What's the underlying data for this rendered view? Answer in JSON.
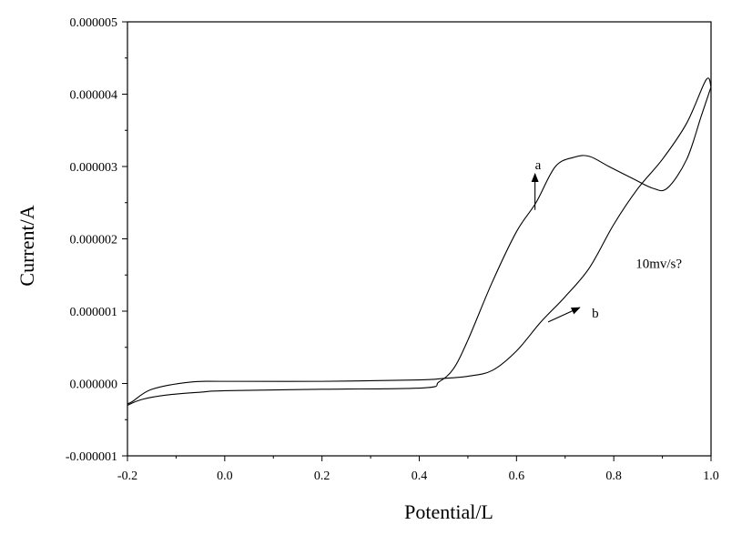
{
  "chart_data": {
    "type": "line",
    "title": "",
    "xlabel": "Potential/L",
    "ylabel": "Current/A",
    "xlim": [
      -0.2,
      1.0
    ],
    "ylim": [
      -1e-06,
      5e-06
    ],
    "grid": false,
    "x_ticks": [
      -0.2,
      0.0,
      0.2,
      0.4,
      0.6,
      0.8,
      1.0
    ],
    "x_tick_labels": [
      "-0.2",
      "0.0",
      "0.2",
      "0.4",
      "0.6",
      "0.8",
      "1.0"
    ],
    "y_ticks": [
      -1e-06,
      0.0,
      1e-06,
      2e-06,
      3e-06,
      4e-06,
      5e-06
    ],
    "y_tick_labels": [
      "-0.000001",
      "0.000000",
      "0.000001",
      "0.000002",
      "0.000003",
      "0.000004",
      "0.000005"
    ],
    "series": [
      {
        "label_key": "a",
        "points": [
          [
            -0.2,
            -3e-07
          ],
          [
            -0.17,
            -2.2e-07
          ],
          [
            -0.12,
            -1.6e-07
          ],
          [
            -0.05,
            -1.2e-07
          ],
          [
            0.0,
            -1e-07
          ],
          [
            0.2,
            -8e-08
          ],
          [
            0.41,
            -6e-08
          ],
          [
            0.44,
            2e-08
          ],
          [
            0.47,
            2e-07
          ],
          [
            0.5,
            6e-07
          ],
          [
            0.55,
            1.4e-06
          ],
          [
            0.6,
            2.1e-06
          ],
          [
            0.64,
            2.5e-06
          ],
          [
            0.68,
            3e-06
          ],
          [
            0.72,
            3.13e-06
          ],
          [
            0.75,
            3.14e-06
          ],
          [
            0.79,
            3e-06
          ],
          [
            0.84,
            2.83e-06
          ],
          [
            0.88,
            2.7e-06
          ],
          [
            0.91,
            2.7e-06
          ],
          [
            0.95,
            3.1e-06
          ],
          [
            0.98,
            3.7e-06
          ],
          [
            1.0,
            4.1e-06
          ]
        ]
      },
      {
        "label_key": "b",
        "points": [
          [
            1.0,
            4.1e-06
          ],
          [
            0.99,
            4.2e-06
          ],
          [
            0.95,
            3.6e-06
          ],
          [
            0.9,
            3.1e-06
          ],
          [
            0.85,
            2.7e-06
          ],
          [
            0.8,
            2.2e-06
          ],
          [
            0.75,
            1.6e-06
          ],
          [
            0.7,
            1.2e-06
          ],
          [
            0.65,
            8.5e-07
          ],
          [
            0.6,
            4.5e-07
          ],
          [
            0.55,
            1.8e-07
          ],
          [
            0.5,
            1e-07
          ],
          [
            0.45,
            7e-08
          ],
          [
            0.4,
            5e-08
          ],
          [
            0.2,
            3e-08
          ],
          [
            0.0,
            3e-08
          ],
          [
            -0.07,
            2e-08
          ],
          [
            -0.15,
            -8e-08
          ],
          [
            -0.19,
            -2.5e-07
          ],
          [
            -0.2,
            -2.8e-07
          ]
        ]
      }
    ],
    "annotations": [
      {
        "text": "a",
        "x": 0.638,
        "y": 2.96e-06,
        "arrow_from": [
          0.638,
          2.4e-06
        ],
        "arrow_to": [
          0.638,
          2.9e-06
        ]
      },
      {
        "text": "b",
        "x": 0.755,
        "y": 9.1e-07,
        "arrow_from": [
          0.665,
          8.5e-07
        ],
        "arrow_to": [
          0.73,
          1.05e-06
        ]
      },
      {
        "text": "10mv/s?",
        "x": 0.845,
        "y": 1.6e-06
      }
    ]
  }
}
